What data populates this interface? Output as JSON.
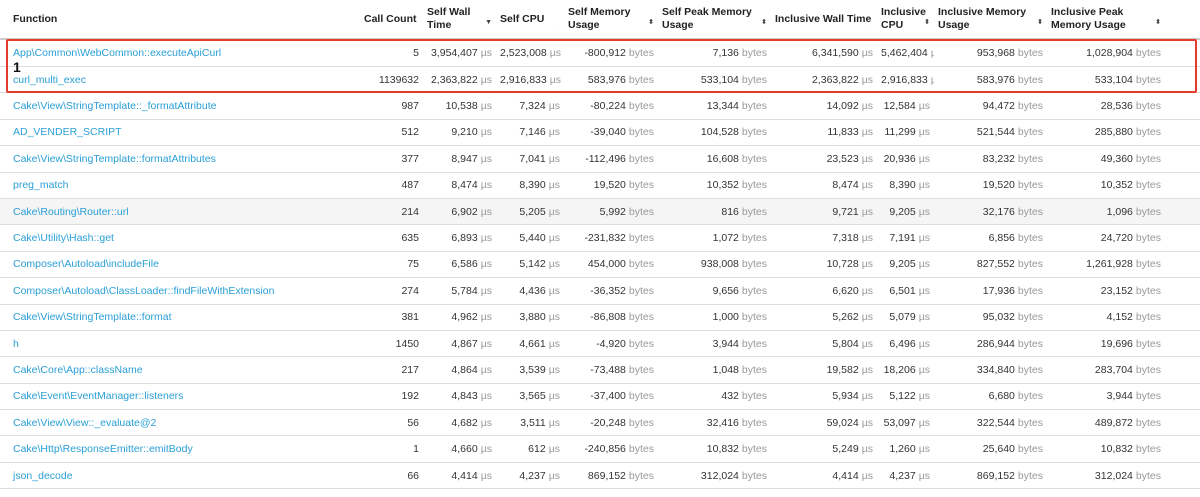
{
  "columns": [
    {
      "label": "Function",
      "sort": ""
    },
    {
      "label": "Call Count",
      "sort": "⬍"
    },
    {
      "label": "Self Wall Time",
      "sort": "▼"
    },
    {
      "label": "Self CPU",
      "sort": "⬍"
    },
    {
      "label": "Self Memory Usage",
      "sort": "⬍"
    },
    {
      "label": "Self Peak Memory Usage",
      "sort": "⬍"
    },
    {
      "label": "Inclusive Wall Time",
      "sort": "⬍"
    },
    {
      "label": "Inclusive CPU",
      "sort": "⬍"
    },
    {
      "label": "Inclusive Memory Usage",
      "sort": "⬍"
    },
    {
      "label": "Inclusive Peak Memory Usage",
      "sort": "⬍"
    }
  ],
  "units": {
    "time": "µs",
    "bytes": "bytes"
  },
  "annotation": {
    "marker": "1",
    "color": "#e53b2c"
  },
  "rows": [
    {
      "fn": "App\\Common\\WebCommon::executeApiCurl",
      "cc": "5",
      "swt": "3,954,407",
      "scpu": "2,523,008",
      "smu": "-800,912",
      "spmu": "7,136",
      "iwt": "6,341,590",
      "icpu": "5,462,404",
      "imu": "953,968",
      "ipmu": "1,028,904"
    },
    {
      "fn": "curl_multi_exec",
      "cc": "1139632",
      "swt": "2,363,822",
      "scpu": "2,916,833",
      "smu": "583,976",
      "spmu": "533,104",
      "iwt": "2,363,822",
      "icpu": "2,916,833",
      "imu": "583,976",
      "ipmu": "533,104"
    },
    {
      "fn": "Cake\\View\\StringTemplate::_formatAttribute",
      "cc": "987",
      "swt": "10,538",
      "scpu": "7,324",
      "smu": "-80,224",
      "spmu": "13,344",
      "iwt": "14,092",
      "icpu": "12,584",
      "imu": "94,472",
      "ipmu": "28,536"
    },
    {
      "fn": "AD_VENDER_SCRIPT",
      "cc": "512",
      "swt": "9,210",
      "scpu": "7,146",
      "smu": "-39,040",
      "spmu": "104,528",
      "iwt": "11,833",
      "icpu": "11,299",
      "imu": "521,544",
      "ipmu": "285,880"
    },
    {
      "fn": "Cake\\View\\StringTemplate::formatAttributes",
      "cc": "377",
      "swt": "8,947",
      "scpu": "7,041",
      "smu": "-112,496",
      "spmu": "16,608",
      "iwt": "23,523",
      "icpu": "20,936",
      "imu": "83,232",
      "ipmu": "49,360"
    },
    {
      "fn": "preg_match",
      "cc": "487",
      "swt": "8,474",
      "scpu": "8,390",
      "smu": "19,520",
      "spmu": "10,352",
      "iwt": "8,474",
      "icpu": "8,390",
      "imu": "19,520",
      "ipmu": "10,352"
    },
    {
      "fn": "Cake\\Routing\\Router::url",
      "cc": "214",
      "swt": "6,902",
      "scpu": "5,205",
      "smu": "5,992",
      "spmu": "816",
      "iwt": "9,721",
      "icpu": "9,205",
      "imu": "32,176",
      "ipmu": "1,096"
    },
    {
      "fn": "Cake\\Utility\\Hash::get",
      "cc": "635",
      "swt": "6,893",
      "scpu": "5,440",
      "smu": "-231,832",
      "spmu": "1,072",
      "iwt": "7,318",
      "icpu": "7,191",
      "imu": "6,856",
      "ipmu": "24,720"
    },
    {
      "fn": "Composer\\Autoload\\includeFile",
      "cc": "75",
      "swt": "6,586",
      "scpu": "5,142",
      "smu": "454,000",
      "spmu": "938,008",
      "iwt": "10,728",
      "icpu": "9,205",
      "imu": "827,552",
      "ipmu": "1,261,928"
    },
    {
      "fn": "Composer\\Autoload\\ClassLoader::findFileWithExtension",
      "cc": "274",
      "swt": "5,784",
      "scpu": "4,436",
      "smu": "-36,352",
      "spmu": "9,656",
      "iwt": "6,620",
      "icpu": "6,501",
      "imu": "17,936",
      "ipmu": "23,152"
    },
    {
      "fn": "Cake\\View\\StringTemplate::format",
      "cc": "381",
      "swt": "4,962",
      "scpu": "3,880",
      "smu": "-86,808",
      "spmu": "1,000",
      "iwt": "5,262",
      "icpu": "5,079",
      "imu": "95,032",
      "ipmu": "4,152"
    },
    {
      "fn": "h",
      "cc": "1450",
      "swt": "4,867",
      "scpu": "4,661",
      "smu": "-4,920",
      "spmu": "3,944",
      "iwt": "5,804",
      "icpu": "6,496",
      "imu": "286,944",
      "ipmu": "19,696"
    },
    {
      "fn": "Cake\\Core\\App::className",
      "cc": "217",
      "swt": "4,864",
      "scpu": "3,539",
      "smu": "-73,488",
      "spmu": "1,048",
      "iwt": "19,582",
      "icpu": "18,206",
      "imu": "334,840",
      "ipmu": "283,704"
    },
    {
      "fn": "Cake\\Event\\EventManager::listeners",
      "cc": "192",
      "swt": "4,843",
      "scpu": "3,565",
      "smu": "-37,400",
      "spmu": "432",
      "iwt": "5,934",
      "icpu": "5,122",
      "imu": "6,680",
      "ipmu": "3,944"
    },
    {
      "fn": "Cake\\View\\View::_evaluate@2",
      "cc": "56",
      "swt": "4,682",
      "scpu": "3,511",
      "smu": "-20,248",
      "spmu": "32,416",
      "iwt": "59,024",
      "icpu": "53,097",
      "imu": "322,544",
      "ipmu": "489,872"
    },
    {
      "fn": "Cake\\Http\\ResponseEmitter::emitBody",
      "cc": "1",
      "swt": "4,660",
      "scpu": "612",
      "smu": "-240,856",
      "spmu": "10,832",
      "iwt": "5,249",
      "icpu": "1,260",
      "imu": "25,640",
      "ipmu": "10,832"
    },
    {
      "fn": "json_decode",
      "cc": "66",
      "swt": "4,414",
      "scpu": "4,237",
      "smu": "869,152",
      "spmu": "312,024",
      "iwt": "4,414",
      "icpu": "4,237",
      "imu": "869,152",
      "ipmu": "312,024"
    }
  ]
}
